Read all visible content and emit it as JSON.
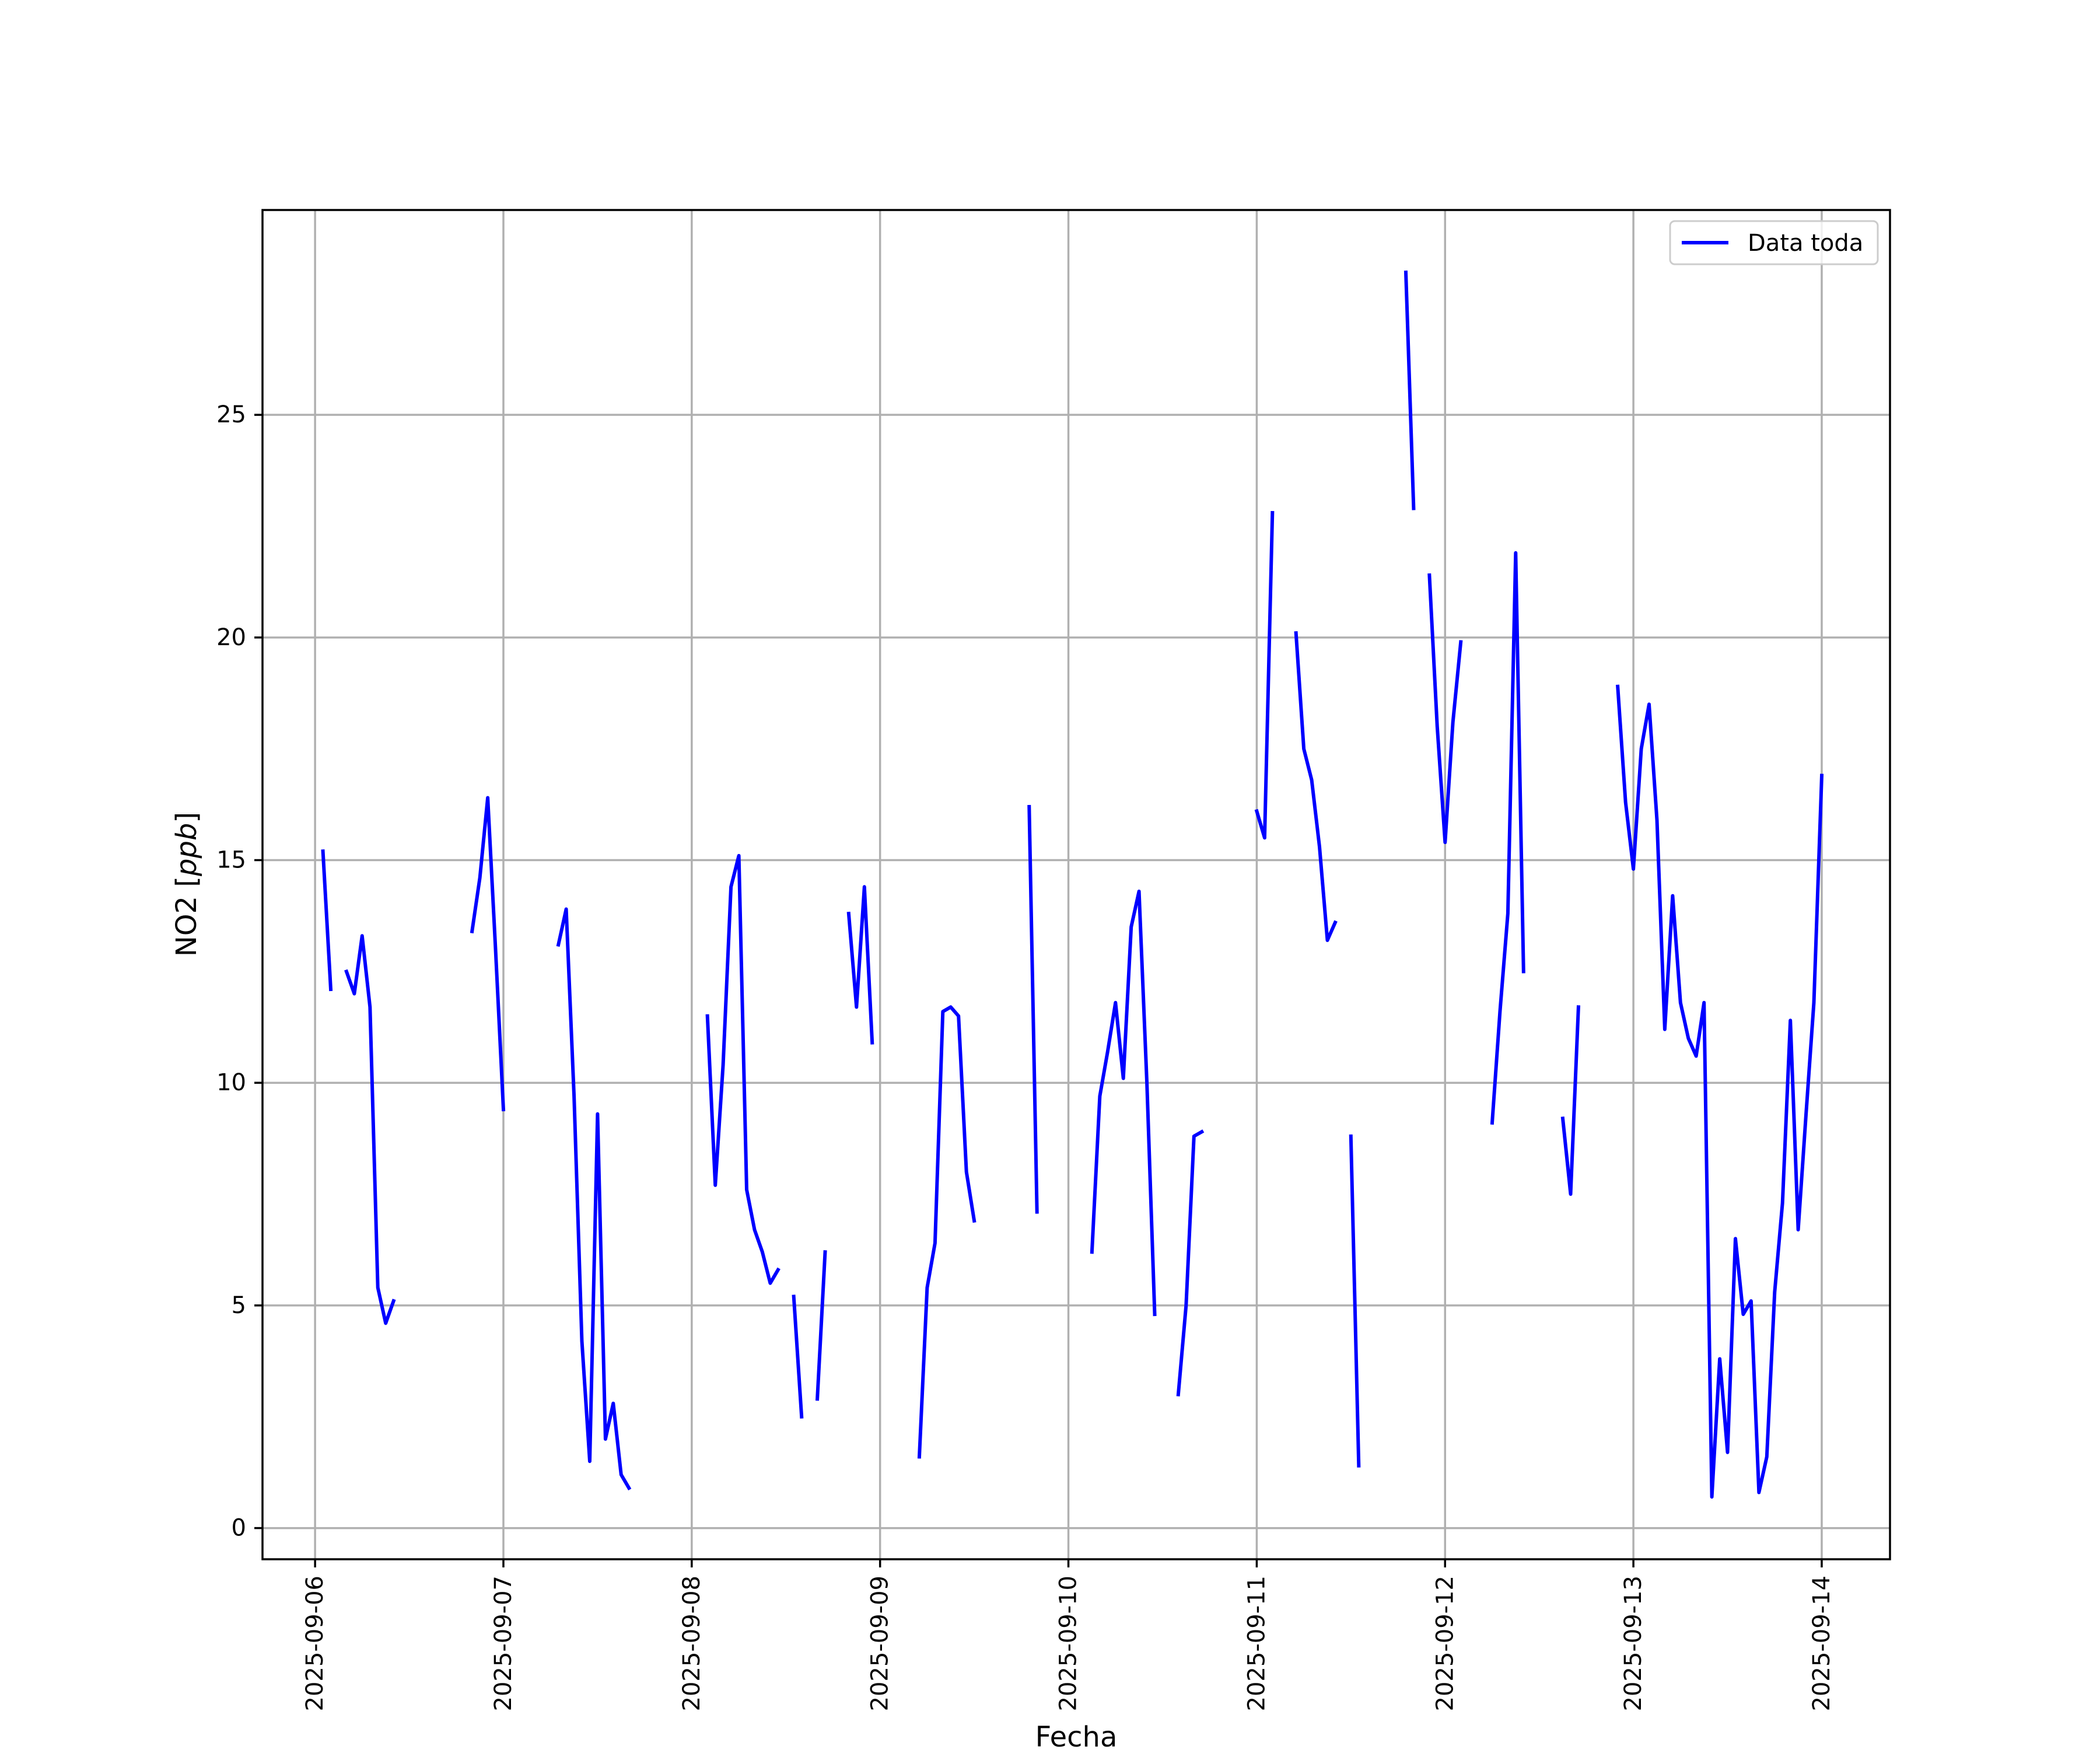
{
  "chart_data": {
    "type": "line",
    "title": "",
    "xlabel": "Fecha",
    "ylabel": "NO2 [ppb]",
    "ylabel_parts": {
      "text": "NO2 [",
      "italic": "ppb",
      "close": "]"
    },
    "xlim": [
      "2025-09-05T17:18",
      "2025-09-14T08:42"
    ],
    "ylim": [
      -0.7,
      29.6
    ],
    "x_ticks": [
      "2025-09-06",
      "2025-09-07",
      "2025-09-08",
      "2025-09-09",
      "2025-09-10",
      "2025-09-11",
      "2025-09-12",
      "2025-09-13",
      "2025-09-14"
    ],
    "y_ticks": [
      0,
      5,
      10,
      15,
      20,
      25
    ],
    "y_tick_labels": [
      "0",
      "5",
      "10",
      "15",
      "20",
      "25"
    ],
    "grid": true,
    "legend_position": "top-right",
    "colors": {
      "series": "#0000ff",
      "grid": "#b0b0b0",
      "frame": "#000000"
    },
    "series": [
      {
        "name": "Data toda",
        "segments": [
          [
            [
              "2025-09-06T01:00",
              15.2
            ],
            [
              "2025-09-06T02:00",
              12.1
            ]
          ],
          [
            [
              "2025-09-06T04:00",
              12.5
            ],
            [
              "2025-09-06T05:00",
              12.0
            ],
            [
              "2025-09-06T06:00",
              13.3
            ],
            [
              "2025-09-06T07:00",
              11.7
            ],
            [
              "2025-09-06T08:00",
              5.4
            ],
            [
              "2025-09-06T09:00",
              4.6
            ],
            [
              "2025-09-06T10:00",
              5.1
            ]
          ],
          [
            [
              "2025-09-06T20:00",
              13.4
            ],
            [
              "2025-09-06T21:00",
              14.6
            ],
            [
              "2025-09-06T22:00",
              16.4
            ],
            [
              "2025-09-06T23:00",
              13.0
            ],
            [
              "2025-09-07T00:00",
              9.4
            ]
          ],
          [
            [
              "2025-09-07T07:00",
              13.1
            ],
            [
              "2025-09-07T08:00",
              13.9
            ],
            [
              "2025-09-07T09:00",
              9.7
            ],
            [
              "2025-09-07T10:00",
              4.2
            ],
            [
              "2025-09-07T11:00",
              1.5
            ],
            [
              "2025-09-07T12:00",
              9.3
            ],
            [
              "2025-09-07T13:00",
              2.0
            ],
            [
              "2025-09-07T14:00",
              2.8
            ],
            [
              "2025-09-07T15:00",
              1.2
            ],
            [
              "2025-09-07T16:00",
              0.9
            ]
          ],
          [
            [
              "2025-09-08T02:00",
              11.5
            ],
            [
              "2025-09-08T03:00",
              7.7
            ],
            [
              "2025-09-08T04:00",
              10.4
            ],
            [
              "2025-09-08T05:00",
              14.4
            ],
            [
              "2025-09-08T06:00",
              15.1
            ],
            [
              "2025-09-08T07:00",
              7.6
            ],
            [
              "2025-09-08T08:00",
              6.7
            ],
            [
              "2025-09-08T09:00",
              6.2
            ],
            [
              "2025-09-08T10:00",
              5.5
            ],
            [
              "2025-09-08T11:00",
              5.8
            ]
          ],
          [
            [
              "2025-09-08T13:00",
              5.2
            ],
            [
              "2025-09-08T14:00",
              2.5
            ]
          ],
          [
            [
              "2025-09-08T16:00",
              2.9
            ],
            [
              "2025-09-08T17:00",
              6.2
            ]
          ],
          [
            [
              "2025-09-08T20:00",
              13.8
            ],
            [
              "2025-09-08T21:00",
              11.7
            ],
            [
              "2025-09-08T22:00",
              14.4
            ],
            [
              "2025-09-08T23:00",
              10.9
            ]
          ],
          [
            [
              "2025-09-09T05:00",
              1.6
            ],
            [
              "2025-09-09T06:00",
              5.4
            ],
            [
              "2025-09-09T07:00",
              6.4
            ],
            [
              "2025-09-09T08:00",
              11.6
            ],
            [
              "2025-09-09T09:00",
              11.7
            ],
            [
              "2025-09-09T10:00",
              11.5
            ],
            [
              "2025-09-09T11:00",
              8.0
            ],
            [
              "2025-09-09T12:00",
              6.9
            ]
          ],
          [
            [
              "2025-09-09T19:00",
              16.2
            ],
            [
              "2025-09-09T20:00",
              7.1
            ]
          ],
          [
            [
              "2025-09-10T03:00",
              6.2
            ],
            [
              "2025-09-10T04:00",
              9.7
            ],
            [
              "2025-09-10T05:00",
              10.7
            ],
            [
              "2025-09-10T06:00",
              11.8
            ],
            [
              "2025-09-10T07:00",
              10.1
            ],
            [
              "2025-09-10T08:00",
              13.5
            ],
            [
              "2025-09-10T09:00",
              14.3
            ],
            [
              "2025-09-10T10:00",
              10.0
            ],
            [
              "2025-09-10T11:00",
              4.8
            ]
          ],
          [
            [
              "2025-09-10T14:00",
              3.0
            ],
            [
              "2025-09-10T15:00",
              5.0
            ],
            [
              "2025-09-10T16:00",
              8.8
            ],
            [
              "2025-09-10T17:00",
              8.9
            ]
          ],
          [
            [
              "2025-09-11T00:00",
              16.1
            ],
            [
              "2025-09-11T01:00",
              15.5
            ],
            [
              "2025-09-11T02:00",
              22.8
            ]
          ],
          [
            [
              "2025-09-11T05:00",
              20.1
            ],
            [
              "2025-09-11T06:00",
              17.5
            ],
            [
              "2025-09-11T07:00",
              16.8
            ],
            [
              "2025-09-11T08:00",
              15.3
            ],
            [
              "2025-09-11T09:00",
              13.2
            ],
            [
              "2025-09-11T10:00",
              13.6
            ]
          ],
          [
            [
              "2025-09-11T12:00",
              8.8
            ],
            [
              "2025-09-11T13:00",
              1.4
            ]
          ],
          [
            [
              "2025-09-11T19:00",
              28.2
            ],
            [
              "2025-09-11T20:00",
              22.9
            ]
          ],
          [
            [
              "2025-09-11T22:00",
              21.4
            ],
            [
              "2025-09-11T23:00",
              18.0
            ],
            [
              "2025-09-12T00:00",
              15.4
            ],
            [
              "2025-09-12T01:00",
              18.1
            ],
            [
              "2025-09-12T02:00",
              19.9
            ]
          ],
          [
            [
              "2025-09-12T06:00",
              9.1
            ],
            [
              "2025-09-12T07:00",
              11.6
            ],
            [
              "2025-09-12T08:00",
              13.8
            ],
            [
              "2025-09-12T09:00",
              21.9
            ],
            [
              "2025-09-12T10:00",
              12.5
            ]
          ],
          [
            [
              "2025-09-12T15:00",
              9.2
            ],
            [
              "2025-09-12T16:00",
              7.5
            ],
            [
              "2025-09-12T17:00",
              11.7
            ]
          ],
          [
            [
              "2025-09-12T22:00",
              18.9
            ],
            [
              "2025-09-12T23:00",
              16.3
            ],
            [
              "2025-09-13T00:00",
              14.8
            ],
            [
              "2025-09-13T01:00",
              17.5
            ],
            [
              "2025-09-13T02:00",
              18.5
            ],
            [
              "2025-09-13T03:00",
              15.9
            ],
            [
              "2025-09-13T04:00",
              11.2
            ],
            [
              "2025-09-13T05:00",
              14.2
            ],
            [
              "2025-09-13T06:00",
              11.8
            ],
            [
              "2025-09-13T07:00",
              11.0
            ],
            [
              "2025-09-13T08:00",
              10.6
            ],
            [
              "2025-09-13T09:00",
              11.8
            ],
            [
              "2025-09-13T10:00",
              0.7
            ],
            [
              "2025-09-13T11:00",
              3.8
            ],
            [
              "2025-09-13T12:00",
              1.7
            ],
            [
              "2025-09-13T13:00",
              6.5
            ],
            [
              "2025-09-13T14:00",
              4.8
            ],
            [
              "2025-09-13T15:00",
              5.1
            ],
            [
              "2025-09-13T16:00",
              0.8
            ],
            [
              "2025-09-13T17:00",
              1.6
            ],
            [
              "2025-09-13T18:00",
              5.3
            ],
            [
              "2025-09-13T19:00",
              7.3
            ],
            [
              "2025-09-13T20:00",
              11.4
            ],
            [
              "2025-09-13T21:00",
              6.7
            ],
            [
              "2025-09-13T22:00",
              9.3
            ],
            [
              "2025-09-13T23:00",
              11.8
            ],
            [
              "2025-09-14T00:00",
              16.9
            ]
          ]
        ]
      }
    ]
  }
}
